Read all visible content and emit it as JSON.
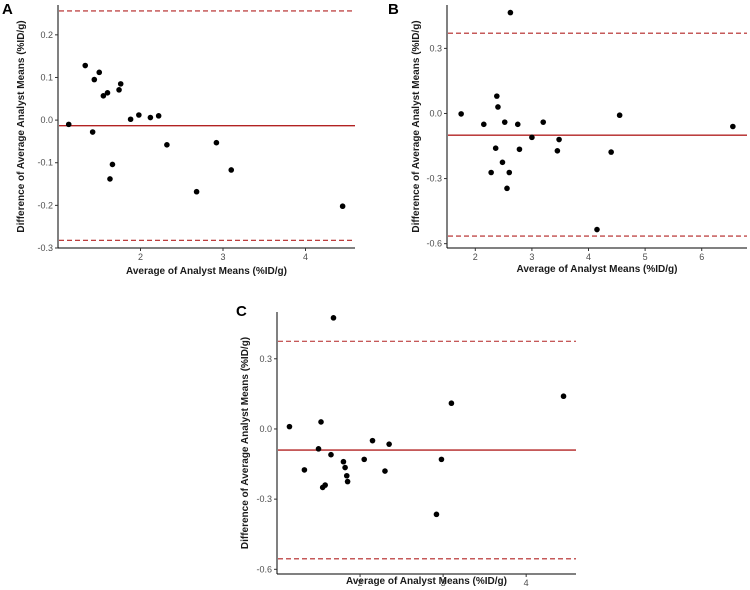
{
  "colors": {
    "mean_line": "#b22222",
    "limit_line": "#b22222",
    "points": "#000000"
  },
  "chart_data": [
    {
      "panel": "A",
      "type": "scatter",
      "subtype": "bland-altman",
      "xlabel": "Average of Analyst Means (%ID/g)",
      "ylabel": "Difference of Average Analyst Means (%ID/g)",
      "xlim": [
        1.0,
        4.6
      ],
      "ylim": [
        -0.3,
        0.27
      ],
      "xticks": [
        2,
        3,
        4
      ],
      "xtick_labels": [
        "2",
        "3",
        "4"
      ],
      "yticks": [
        -0.3,
        -0.2,
        -0.1,
        0.0,
        0.1,
        0.2
      ],
      "ytick_labels": [
        "-0.3",
        "-0.2",
        "-0.1",
        "0.0",
        "0.1",
        "0.2"
      ],
      "mean_difference": -0.013,
      "upper_limit": 0.256,
      "lower_limit": -0.282,
      "points": [
        [
          1.13,
          -0.01
        ],
        [
          1.33,
          0.128
        ],
        [
          1.42,
          -0.028
        ],
        [
          1.44,
          0.095
        ],
        [
          1.5,
          0.112
        ],
        [
          1.55,
          0.057
        ],
        [
          1.6,
          0.064
        ],
        [
          1.63,
          -0.138
        ],
        [
          1.66,
          -0.104
        ],
        [
          1.74,
          0.071
        ],
        [
          1.76,
          0.085
        ],
        [
          1.88,
          0.002
        ],
        [
          1.98,
          0.012
        ],
        [
          2.12,
          0.006
        ],
        [
          2.22,
          0.01
        ],
        [
          2.32,
          -0.058
        ],
        [
          2.68,
          -0.168
        ],
        [
          2.92,
          -0.053
        ],
        [
          3.1,
          -0.117
        ],
        [
          4.45,
          -0.202
        ]
      ]
    },
    {
      "panel": "B",
      "type": "scatter",
      "subtype": "bland-altman",
      "xlabel": "Average of Analyst Means (%ID/g)",
      "ylabel": "Difference of Average Analyst Means (%ID/g)",
      "xlim": [
        1.5,
        6.8
      ],
      "ylim": [
        -0.62,
        0.5
      ],
      "xticks": [
        2,
        3,
        4,
        5,
        6
      ],
      "xtick_labels": [
        "2",
        "3",
        "4",
        "5",
        "6"
      ],
      "yticks": [
        -0.6,
        -0.3,
        0.0,
        0.3
      ],
      "ytick_labels": [
        "-0.6",
        "-0.3",
        "0.0",
        "0.3"
      ],
      "mean_difference": -0.1,
      "upper_limit": 0.37,
      "lower_limit": -0.565,
      "points": [
        [
          1.75,
          -0.002
        ],
        [
          2.15,
          -0.05
        ],
        [
          2.28,
          -0.272
        ],
        [
          2.36,
          -0.16
        ],
        [
          2.38,
          0.08
        ],
        [
          2.4,
          0.03
        ],
        [
          2.48,
          -0.225
        ],
        [
          2.52,
          -0.04
        ],
        [
          2.56,
          -0.345
        ],
        [
          2.6,
          -0.272
        ],
        [
          2.62,
          0.465
        ],
        [
          2.75,
          -0.05
        ],
        [
          2.78,
          -0.165
        ],
        [
          3.0,
          -0.11
        ],
        [
          3.2,
          -0.04
        ],
        [
          3.45,
          -0.172
        ],
        [
          3.48,
          -0.12
        ],
        [
          4.15,
          -0.535
        ],
        [
          4.4,
          -0.178
        ],
        [
          4.55,
          -0.008
        ],
        [
          6.55,
          -0.06
        ]
      ]
    },
    {
      "panel": "C",
      "type": "scatter",
      "subtype": "bland-altman",
      "xlabel": "Average of Analyst Means (%ID/g)",
      "ylabel": "Difference of Average Analyst Means (%ID/g)",
      "xlim": [
        1.0,
        4.6
      ],
      "ylim": [
        -0.62,
        0.5
      ],
      "xticks": [
        2,
        3,
        4
      ],
      "xtick_labels": [
        "2",
        "3",
        "4"
      ],
      "yticks": [
        -0.6,
        -0.3,
        0.0,
        0.3
      ],
      "ytick_labels": [
        "-0.6",
        "-0.3",
        "0.0",
        "0.3"
      ],
      "mean_difference": -0.09,
      "upper_limit": 0.375,
      "lower_limit": -0.555,
      "points": [
        [
          1.15,
          0.01
        ],
        [
          1.33,
          -0.175
        ],
        [
          1.5,
          -0.085
        ],
        [
          1.53,
          0.03
        ],
        [
          1.55,
          -0.25
        ],
        [
          1.58,
          -0.24
        ],
        [
          1.65,
          -0.11
        ],
        [
          1.68,
          0.475
        ],
        [
          1.8,
          -0.14
        ],
        [
          1.82,
          -0.165
        ],
        [
          1.84,
          -0.2
        ],
        [
          1.85,
          -0.225
        ],
        [
          2.05,
          -0.13
        ],
        [
          2.15,
          -0.05
        ],
        [
          2.3,
          -0.18
        ],
        [
          2.35,
          -0.065
        ],
        [
          2.92,
          -0.365
        ],
        [
          2.98,
          -0.13
        ],
        [
          3.1,
          0.11
        ],
        [
          4.45,
          0.14
        ]
      ]
    }
  ]
}
